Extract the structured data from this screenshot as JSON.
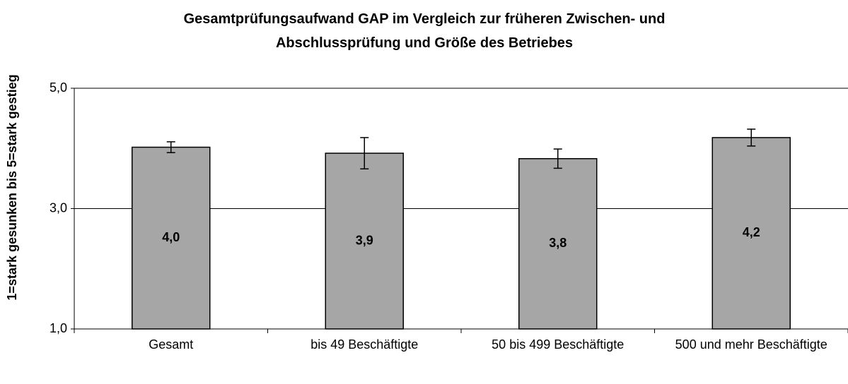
{
  "chart_data": {
    "type": "bar",
    "title": "Gesamtprüfungsaufwand GAP im Vergleich zur früheren Zwischen- und Abschlussprüfung und Größe des Betriebes",
    "ylabel": "1=stark gesunken bis 5=stark gestieg",
    "categories": [
      "Gesamt",
      "bis 49 Beschäftigte",
      "50 bis 499 Beschäftigte",
      "500 und mehr Beschäftigte"
    ],
    "values": [
      4.02,
      3.92,
      3.83,
      4.18
    ],
    "value_labels": [
      "4,0",
      "3,9",
      "3,8",
      "4,2"
    ],
    "errors": [
      0.09,
      0.26,
      0.16,
      0.14
    ],
    "color": "#a6a6a6",
    "ylim": [
      1,
      5
    ],
    "yticks": [
      {
        "value": 1,
        "label": "1,0"
      },
      {
        "value": 3,
        "label": "3,0"
      },
      {
        "value": 5,
        "label": "5,0"
      }
    ],
    "grid": true
  }
}
